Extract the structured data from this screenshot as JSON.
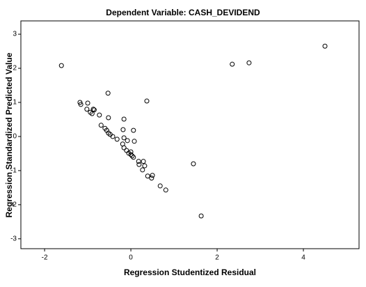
{
  "chart_data": {
    "type": "scatter",
    "title": "Dependent Variable: CASH_DEVIDEND",
    "x_label": "Regression Studentized Residual",
    "y_label": "Regression Standardized Predicted Value",
    "xlim": [
      -2.55,
      5.29
    ],
    "ylim": [
      -3.29,
      3.39
    ],
    "xticks": [
      -2,
      0,
      2,
      4
    ],
    "yticks": [
      -3,
      -2,
      -1,
      0,
      1,
      2,
      3
    ],
    "color": "#000000",
    "series": [
      {
        "x": [
          -1.61,
          -0.53,
          0.37,
          2.35,
          2.74,
          4.5,
          1.45,
          1.63,
          -1.18,
          -1.16,
          -1.0,
          -1.02,
          -0.94,
          -0.87,
          -0.85,
          -0.9,
          -0.73,
          -0.52,
          -0.69,
          -0.6,
          -0.56,
          -0.52,
          -0.48,
          -0.42,
          -0.32,
          -0.16,
          -0.18,
          0.06,
          -0.16,
          -0.08,
          0.08,
          -0.19,
          -0.16,
          -0.1,
          -0.05,
          0,
          0,
          0.03,
          0.06,
          0.18,
          0.19,
          0.29,
          0.32,
          0.27,
          0.39,
          0.48,
          0.5,
          0.68,
          0.81
        ],
        "y": [
          2.08,
          1.27,
          1.04,
          2.12,
          2.16,
          2.65,
          -0.8,
          -2.33,
          1.0,
          0.94,
          0.98,
          0.8,
          0.71,
          0.8,
          0.78,
          0.67,
          0.63,
          0.55,
          0.33,
          0.24,
          0.18,
          0.1,
          0.06,
          0.0,
          -0.08,
          0.51,
          0.2,
          0.18,
          -0.04,
          -0.12,
          -0.14,
          -0.22,
          -0.33,
          -0.41,
          -0.49,
          -0.53,
          -0.45,
          -0.57,
          -0.61,
          -0.73,
          -0.82,
          -0.73,
          -0.86,
          -0.98,
          -1.16,
          -1.22,
          -1.14,
          -1.45,
          -1.57
        ]
      }
    ]
  }
}
